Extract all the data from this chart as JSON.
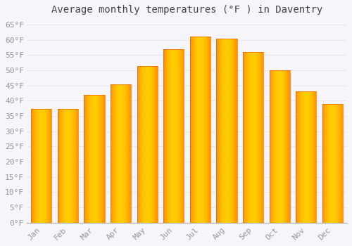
{
  "title": "Average monthly temperatures (°F ) in Daventry",
  "months": [
    "Jan",
    "Feb",
    "Mar",
    "Apr",
    "May",
    "Jun",
    "Jul",
    "Aug",
    "Sep",
    "Oct",
    "Nov",
    "Dec"
  ],
  "values": [
    37.2,
    37.3,
    42.0,
    45.3,
    51.3,
    57.0,
    61.0,
    60.3,
    56.0,
    50.0,
    43.0,
    39.0
  ],
  "bar_color_center": "#FFB300",
  "bar_color_edge": "#FF8F00",
  "bar_color_light": "#FFCC02",
  "ylim": [
    0,
    67
  ],
  "yticks": [
    0,
    5,
    10,
    15,
    20,
    25,
    30,
    35,
    40,
    45,
    50,
    55,
    60,
    65
  ],
  "ytick_labels": [
    "0°F",
    "5°F",
    "10°F",
    "15°F",
    "20°F",
    "25°F",
    "30°F",
    "35°F",
    "40°F",
    "45°F",
    "50°F",
    "55°F",
    "60°F",
    "65°F"
  ],
  "background_color": "#f5f5fa",
  "plot_bg_color": "#f5f5fa",
  "grid_color": "#e8e8e8",
  "title_fontsize": 10,
  "tick_fontsize": 8,
  "font_family": "monospace",
  "bar_width": 0.78
}
